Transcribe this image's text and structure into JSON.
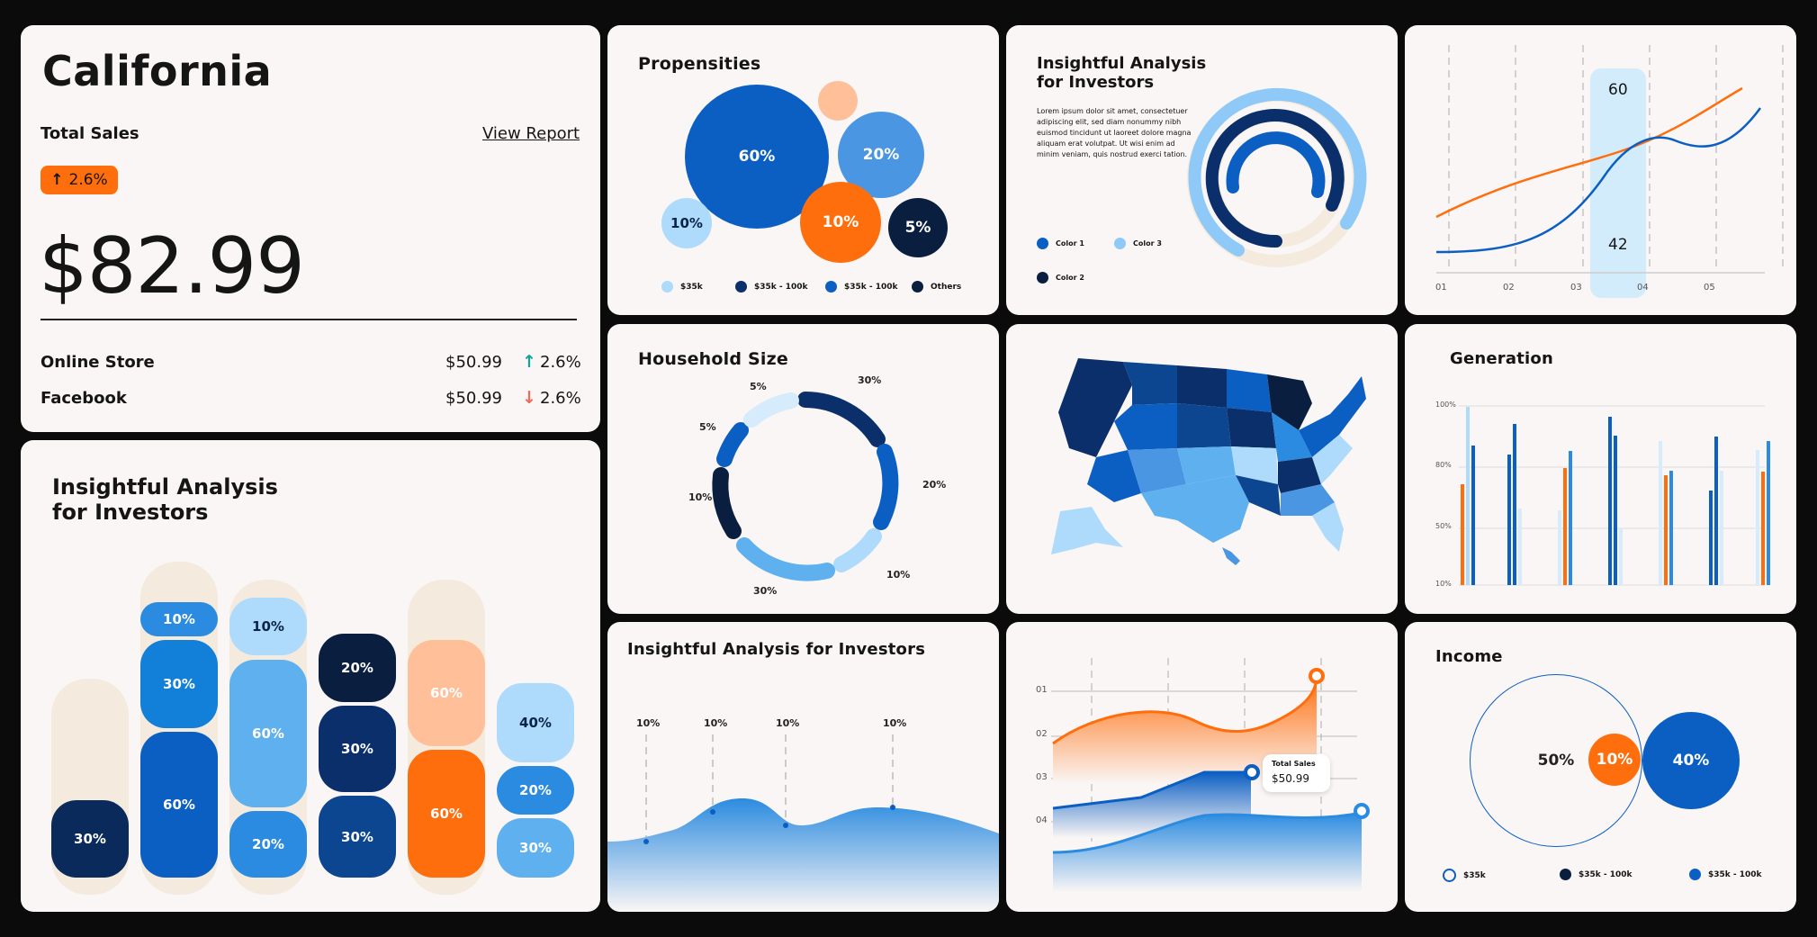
{
  "colors": {
    "orange": "#ff6e0d",
    "navy": "#0a2447",
    "blue": "#0b5fc3",
    "mid": "#2b8be0",
    "light": "#5fb0ef",
    "pale": "#aedafb",
    "peach": "#ffbf99",
    "cream": "#f4ebde"
  },
  "sales_card": {
    "state": "California",
    "total_sales_label": "Total Sales",
    "view_report": "View Report",
    "badge": "2.6%",
    "amount": "$82.99",
    "rows": [
      {
        "label": "Online Store",
        "value": "$50.99",
        "delta": "2.6%",
        "dir": "up"
      },
      {
        "label": "Facebook",
        "value": "$50.99",
        "delta": "2.6%",
        "dir": "down"
      }
    ]
  },
  "stacked_pills": {
    "title_line1": "Insightful Analysis",
    "title_line2": "for Investors",
    "columns": [
      {
        "segments": [
          "30%"
        ]
      },
      {
        "segments": [
          "10%",
          "30%",
          "60%"
        ]
      },
      {
        "segments": [
          "10%",
          "60%",
          "20%"
        ]
      },
      {
        "segments": [
          "20%",
          "30%",
          "30%"
        ]
      },
      {
        "segments": [
          "60%",
          "60%"
        ]
      },
      {
        "segments": [
          "40%",
          "20%",
          "30%"
        ]
      }
    ]
  },
  "propensities": {
    "title": "Propensities",
    "bubbles": [
      "60%",
      "20%",
      "10%",
      "10%",
      "5%"
    ],
    "legend": [
      "$35k",
      "$35k - 100k",
      "$35k - 100k",
      "Others"
    ]
  },
  "household": {
    "title": "Household Size",
    "labels": [
      "5%",
      "30%",
      "5%",
      "20%",
      "10%",
      "10%",
      "30%"
    ]
  },
  "area_card": {
    "title": "Insightful Analysis for Investors",
    "labels": [
      "10%",
      "10%",
      "10%",
      "10%"
    ]
  },
  "rings_card": {
    "title_line1": "Insightful Analysis",
    "title_line2": "for Investors",
    "body": "Lorem ipsum dolor sit amet, consectetuer adipiscing elit, sed diam nonummy nibh euismod tincidunt ut laoreet dolore magna aliquam erat volutpat. Ut wisi enim ad minim veniam, quis nostrud exerci tation.",
    "legend": [
      "Color 1",
      "Color 3",
      "Color 2"
    ]
  },
  "map_card": {
    "title": ""
  },
  "orange_area": {
    "y_ticks": [
      "01",
      "02",
      "03",
      "04"
    ],
    "tooltip_label": "Total Sales",
    "tooltip_value": "$50.99"
  },
  "line_card": {
    "x_ticks": [
      "01",
      "02",
      "03",
      "04",
      "05"
    ],
    "marker_top": "60",
    "marker_bottom": "42"
  },
  "generation": {
    "title": "Generation",
    "y_ticks": [
      "100%",
      "80%",
      "50%",
      "10%"
    ]
  },
  "income": {
    "title": "Income",
    "bubbles": [
      "50%",
      "10%",
      "40%"
    ],
    "legend": [
      "$35k",
      "$35k - 100k",
      "$35k - 100k"
    ]
  }
}
